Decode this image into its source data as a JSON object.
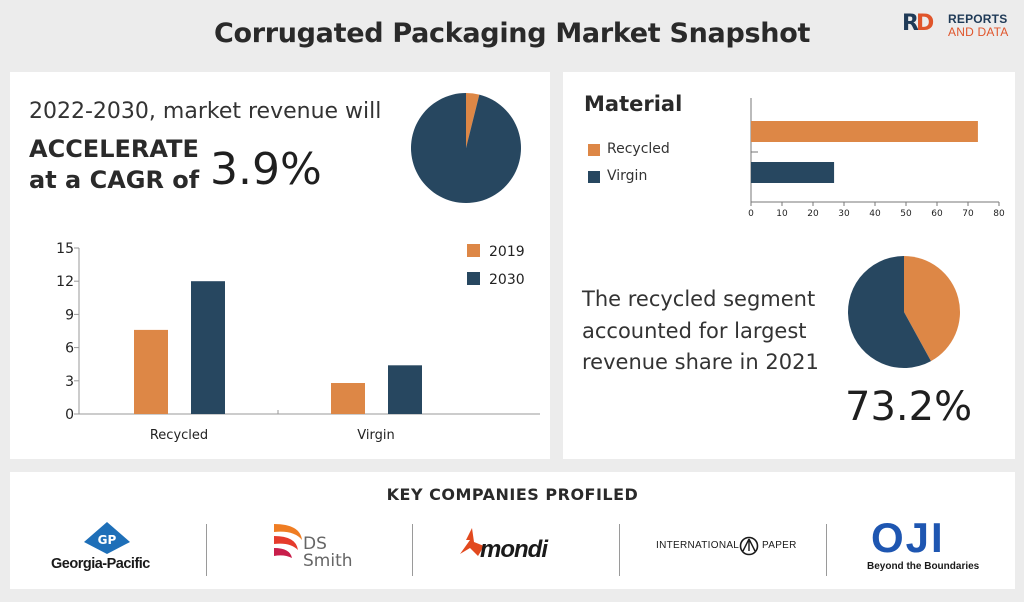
{
  "title": "Corrugated Packaging Market Snapshot",
  "brand": {
    "line1": "REPORTS",
    "line2": "AND DATA",
    "mark_r": "R",
    "mark_d": "D"
  },
  "colors": {
    "orange": "#dd8746",
    "navy": "#274760",
    "brand_navy": "#1f3a57",
    "brand_orange": "#e0552b"
  },
  "headline": {
    "line1": "2022-2030, market revenue will",
    "line2a": "ACCELERATE",
    "line2b": "at a CAGR of",
    "cagr": "3.9%"
  },
  "segment": {
    "text": "The recycled segment accounted for largest revenue share in 2021",
    "percent": "73.2%"
  },
  "material_title": "Material",
  "key_companies": {
    "title": "KEY COMPANIES PROFILED",
    "companies": [
      {
        "name": "Georgia-Pacific",
        "icon": "gp-logo-icon",
        "mark": "GP"
      },
      {
        "name": "DS Smith",
        "icon": "ds-smith-logo-icon",
        "line1": "DS",
        "line2": "Smith"
      },
      {
        "name": "mondi",
        "icon": "mondi-logo-icon"
      },
      {
        "name": "INTERNATIONAL PAPER",
        "icon": "international-paper-logo-icon",
        "left": "INTERNATIONAL",
        "right": "PAPER"
      },
      {
        "name": "OJI",
        "icon": "oji-logo-icon",
        "tagline": "Beyond the Boundaries"
      }
    ]
  },
  "chart_data": [
    {
      "type": "pie",
      "slices": [
        {
          "name": "",
          "value": 3.9,
          "color": "#dd8746"
        },
        {
          "name": "",
          "value": 96.1,
          "color": "#274760"
        }
      ]
    },
    {
      "type": "bar",
      "orientation": "vertical",
      "categories": [
        "Recycled",
        "Virgin"
      ],
      "series": [
        {
          "name": "2019",
          "values": [
            7.6,
            2.8
          ],
          "color": "#dd8746"
        },
        {
          "name": "2030",
          "values": [
            12.0,
            4.4
          ],
          "color": "#274760"
        }
      ],
      "yticks": [
        "0",
        "3",
        "6",
        "9",
        "12",
        "15"
      ],
      "ylim": [
        0,
        15
      ],
      "legend": "top-right",
      "grid": false
    },
    {
      "type": "bar",
      "orientation": "horizontal",
      "categories": [
        "Recycled",
        "Virgin"
      ],
      "values": [
        73.2,
        26.8
      ],
      "colors": [
        "#dd8746",
        "#274760"
      ],
      "xticks": [
        "0",
        "10",
        "20",
        "30",
        "40",
        "50",
        "60",
        "70",
        "80"
      ],
      "xlim": [
        0,
        80
      ],
      "legend": "left",
      "grid": false
    },
    {
      "type": "pie",
      "slices": [
        {
          "name": "Recycled",
          "value": 42,
          "color": "#dd8746"
        },
        {
          "name": "Virgin",
          "value": 58,
          "color": "#274760"
        }
      ]
    }
  ]
}
